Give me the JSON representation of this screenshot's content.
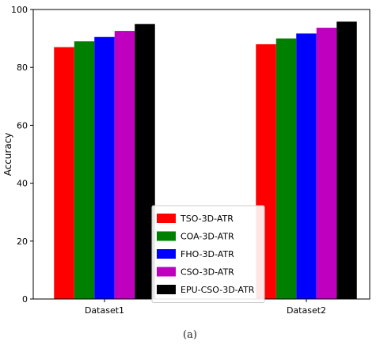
{
  "chart_data": {
    "type": "bar",
    "categories": [
      "Dataset1",
      "Dataset2"
    ],
    "series": [
      {
        "name": "TSO-3D-ATR",
        "color": "#ff0000",
        "values": [
          87.0,
          88.0
        ]
      },
      {
        "name": "COA-3D-ATR",
        "color": "#008000",
        "values": [
          89.0,
          90.0
        ]
      },
      {
        "name": "FHO-3D-ATR",
        "color": "#0000ff",
        "values": [
          90.5,
          91.7
        ]
      },
      {
        "name": "CSO-3D-ATR",
        "color": "#bf00bf",
        "values": [
          92.6,
          93.7
        ]
      },
      {
        "name": "EPU-CSO-3D-ATR",
        "color": "#000000",
        "values": [
          95.0,
          95.8
        ]
      }
    ],
    "xlabel": "",
    "ylabel": "Accuracy",
    "ylim": [
      0,
      100
    ],
    "yticks": [
      0,
      20,
      40,
      60,
      80,
      100
    ],
    "grid": false,
    "legend_position": "lower-center"
  },
  "caption": "(a)"
}
